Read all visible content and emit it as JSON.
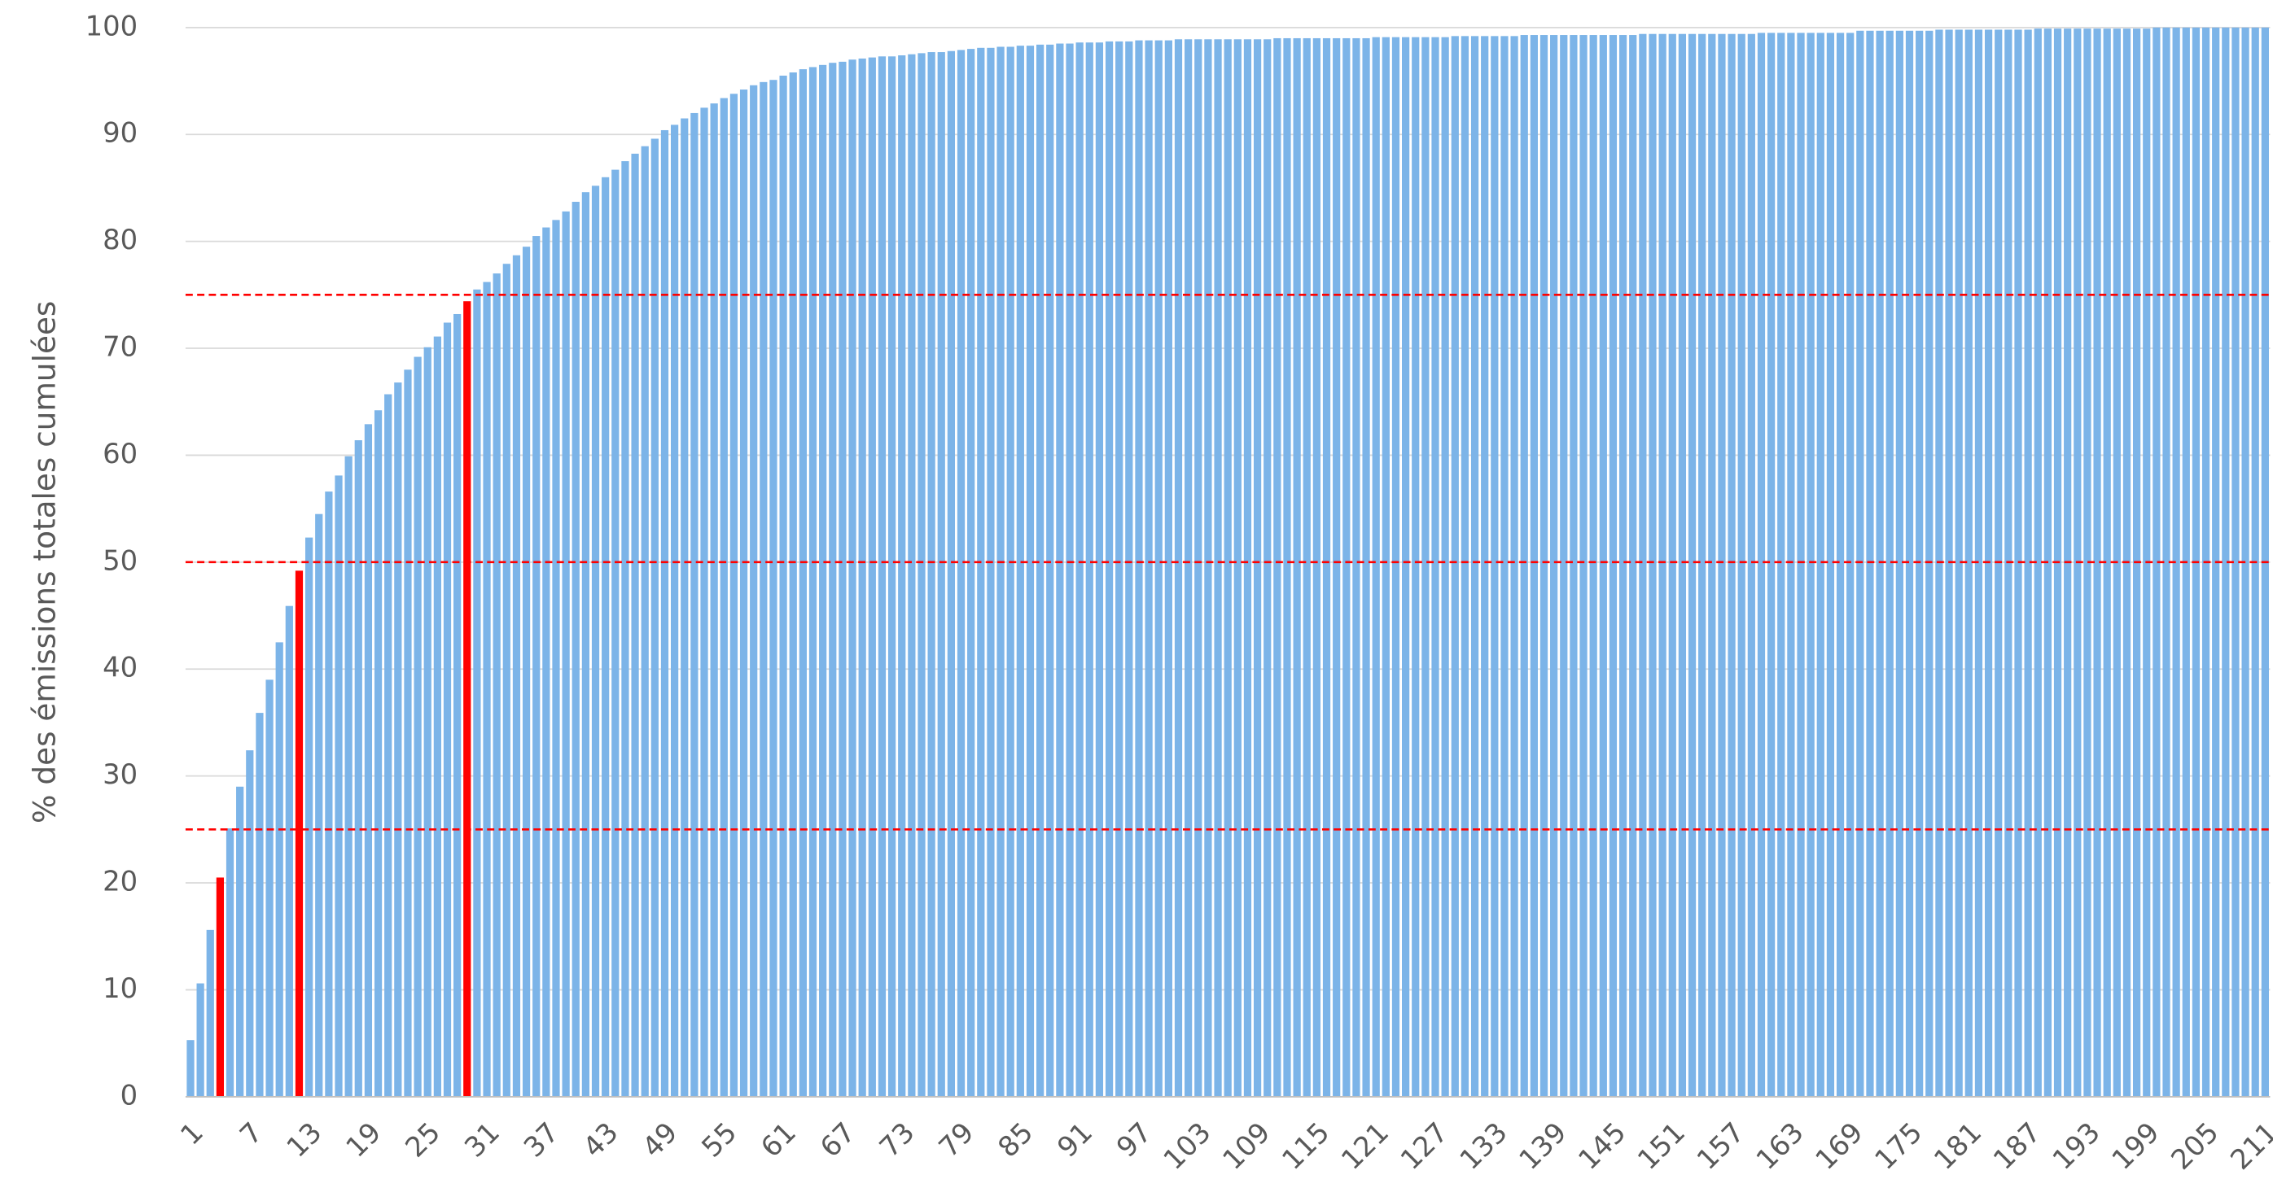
{
  "chart_data": {
    "type": "bar",
    "ylabel": "% des émissions totales cumulées",
    "color": "#7cb4e8",
    "highlight_color": "#ff0000",
    "highlight_indices": [
      3,
      11,
      28
    ],
    "reference_lines": [
      25,
      50,
      75
    ],
    "reference_color": "#ff0000",
    "grid": true,
    "ylim": [
      0,
      100
    ],
    "yticks": [
      0,
      10,
      20,
      30,
      40,
      50,
      60,
      70,
      80,
      90,
      100
    ],
    "categories": [
      "1",
      null,
      null,
      null,
      null,
      null,
      "7",
      null,
      null,
      null,
      null,
      null,
      "13",
      null,
      null,
      null,
      null,
      null,
      "19",
      null,
      null,
      null,
      null,
      null,
      "25",
      null,
      null,
      null,
      null,
      null,
      "31",
      null,
      null,
      null,
      null,
      null,
      "37",
      null,
      null,
      null,
      null,
      null,
      "43",
      null,
      null,
      null,
      null,
      null,
      "49",
      null,
      null,
      null,
      null,
      null,
      "55",
      null,
      null,
      null,
      null,
      null,
      "61",
      null,
      null,
      null,
      null,
      null,
      "67",
      null,
      null,
      null,
      null,
      null,
      "73",
      null,
      null,
      null,
      null,
      null,
      "79",
      null,
      null,
      null,
      null,
      null,
      "85",
      null,
      null,
      null,
      null,
      null,
      "91",
      null,
      null,
      null,
      null,
      null,
      "97",
      null,
      null,
      null,
      null,
      null,
      "103",
      null,
      null,
      null,
      null,
      null,
      "109",
      null,
      null,
      null,
      null,
      null,
      "115",
      null,
      null,
      null,
      null,
      null,
      "121",
      null,
      null,
      null,
      null,
      null,
      "127",
      null,
      null,
      null,
      null,
      null,
      "133",
      null,
      null,
      null,
      null,
      null,
      "139",
      null,
      null,
      null,
      null,
      null,
      "145",
      null,
      null,
      null,
      null,
      null,
      "151",
      null,
      null,
      null,
      null,
      null,
      "157",
      null,
      null,
      null,
      null,
      null,
      "163",
      null,
      null,
      null,
      null,
      null,
      "169",
      null,
      null,
      null,
      null,
      null,
      "175",
      null,
      null,
      null,
      null,
      null,
      "181",
      null,
      null,
      null,
      null,
      null,
      "187",
      null,
      null,
      null,
      null,
      null,
      "193",
      null,
      null,
      null,
      null,
      null,
      "199",
      null,
      null,
      null,
      null,
      null,
      "205",
      null,
      null,
      null,
      null,
      null,
      "211"
    ],
    "values": [
      5.3,
      10.6,
      15.6,
      20.5,
      25.1,
      29.0,
      32.4,
      35.9,
      39.0,
      42.5,
      45.9,
      49.2,
      52.3,
      54.5,
      56.6,
      58.1,
      59.9,
      61.4,
      62.9,
      64.2,
      65.7,
      66.8,
      68.0,
      69.2,
      70.1,
      71.1,
      72.4,
      73.2,
      74.4,
      75.5,
      76.2,
      77.0,
      77.9,
      78.7,
      79.5,
      80.5,
      81.3,
      82.0,
      82.8,
      83.7,
      84.6,
      85.2,
      86.0,
      86.7,
      87.5,
      88.2,
      88.9,
      89.6,
      90.4,
      90.9,
      91.5,
      92.0,
      92.5,
      92.9,
      93.4,
      93.8,
      94.2,
      94.6,
      94.9,
      95.1,
      95.5,
      95.8,
      96.1,
      96.3,
      96.5,
      96.7,
      96.8,
      97.0,
      97.1,
      97.2,
      97.3,
      97.3,
      97.4,
      97.5,
      97.6,
      97.7,
      97.7,
      97.8,
      97.9,
      98.0,
      98.1,
      98.1,
      98.2,
      98.2,
      98.3,
      98.3,
      98.4,
      98.4,
      98.5,
      98.5,
      98.6,
      98.6,
      98.6,
      98.7,
      98.7,
      98.7,
      98.8,
      98.8,
      98.8,
      98.8,
      98.9,
      98.9,
      98.9,
      98.9,
      98.9,
      98.9,
      98.9,
      98.9,
      98.9,
      98.9,
      99.0,
      99.0,
      99.0,
      99.0,
      99.0,
      99.0,
      99.0,
      99.0,
      99.0,
      99.0,
      99.1,
      99.1,
      99.1,
      99.1,
      99.1,
      99.1,
      99.1,
      99.1,
      99.2,
      99.2,
      99.2,
      99.2,
      99.2,
      99.2,
      99.2,
      99.3,
      99.3,
      99.3,
      99.3,
      99.3,
      99.3,
      99.3,
      99.3,
      99.3,
      99.3,
      99.3,
      99.3,
      99.4,
      99.4,
      99.4,
      99.4,
      99.4,
      99.4,
      99.4,
      99.4,
      99.4,
      99.4,
      99.4,
      99.4,
      99.5,
      99.5,
      99.5,
      99.5,
      99.5,
      99.5,
      99.5,
      99.5,
      99.5,
      99.5,
      99.7,
      99.7,
      99.7,
      99.7,
      99.7,
      99.7,
      99.7,
      99.7,
      99.8,
      99.8,
      99.8,
      99.8,
      99.8,
      99.8,
      99.8,
      99.8,
      99.8,
      99.8,
      99.9,
      99.9,
      99.9,
      99.9,
      99.9,
      99.9,
      99.9,
      99.9,
      99.9,
      99.9,
      99.9,
      99.9,
      100,
      100,
      100,
      100,
      100,
      100,
      100,
      100,
      100,
      100,
      100,
      100
    ]
  }
}
